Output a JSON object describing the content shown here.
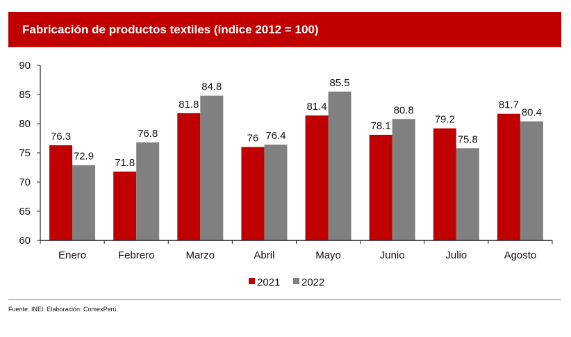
{
  "banner": {
    "title": "Fabricación de productos textiles (índice 2012 = 100)",
    "color": "#C00000"
  },
  "source": "Fuente: INEI. Elaboración: ComexPerú.",
  "chart_data": {
    "type": "bar",
    "title": "Fabricación de productos textiles (índice 2012 = 100)",
    "xlabel": "",
    "ylabel": "",
    "ylim": [
      60,
      90
    ],
    "yticks": [
      60,
      65,
      70,
      75,
      80,
      85,
      90
    ],
    "grid": false,
    "legend_position": "bottom-center",
    "categories": [
      "Enero",
      "Febrero",
      "Marzo",
      "Abril",
      "Mayo",
      "Junio",
      "Julio",
      "Agosto"
    ],
    "series": [
      {
        "name": "2021",
        "color": "#C00000",
        "values": [
          76.3,
          71.8,
          81.8,
          76,
          81.4,
          78.1,
          79.2,
          81.7
        ],
        "labels": [
          "76.3",
          "71.8",
          "81.8",
          "76",
          "81.4",
          "78.1",
          "79.2",
          "81.7"
        ]
      },
      {
        "name": "2022",
        "color": "#808080",
        "values": [
          72.9,
          76.8,
          84.8,
          76.4,
          85.5,
          80.8,
          75.8,
          80.4
        ],
        "labels": [
          "72.9",
          "76.8",
          "84.8",
          "76.4",
          "85.5",
          "80.8",
          "75.8",
          "80.4"
        ]
      }
    ]
  }
}
